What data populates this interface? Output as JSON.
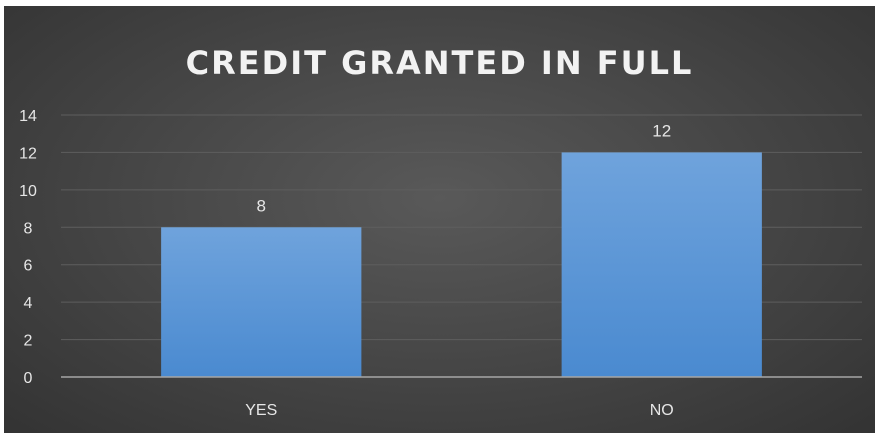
{
  "chart_data": {
    "type": "bar",
    "title": "CREDIT GRANTED IN FULL",
    "xlabel": "",
    "ylabel": "",
    "categories": [
      "YES",
      "NO"
    ],
    "values": [
      8,
      12
    ],
    "data_labels": [
      "8",
      "12"
    ],
    "ylim": [
      0,
      14
    ],
    "yticks": [
      0,
      2,
      4,
      6,
      8,
      10,
      12,
      14
    ],
    "ytick_labels": [
      "0",
      "2",
      "4",
      "6",
      "8",
      "10",
      "12",
      "14"
    ],
    "grid": true,
    "legend": "none",
    "colors": {
      "bar_top": "#6fa3dc",
      "bar_bottom": "#4a8ad0",
      "background": "#484848",
      "gridline": "#5e5e5e",
      "axis_line": "#a6a6a6",
      "text": "#e6e6e6"
    }
  }
}
